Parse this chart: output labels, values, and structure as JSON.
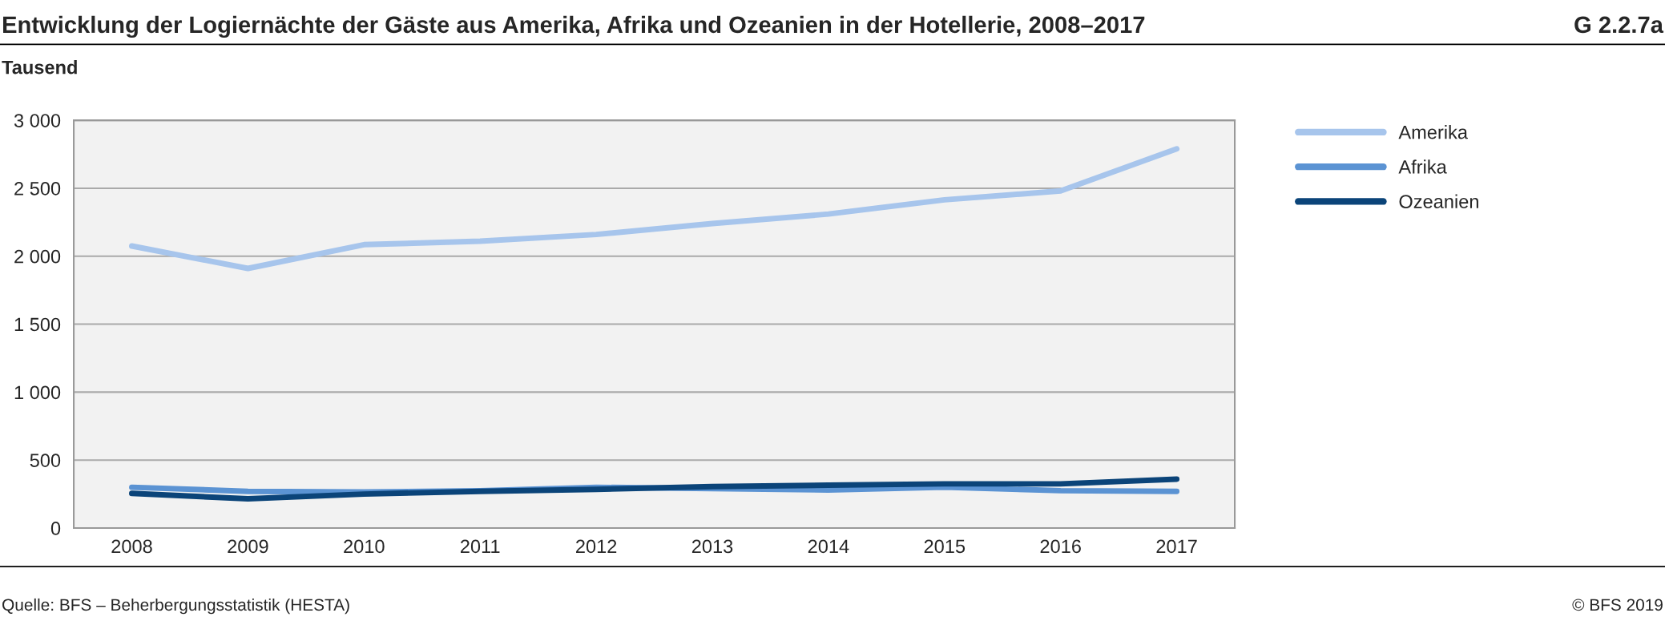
{
  "chart_data": {
    "type": "line",
    "title": "Entwicklung der Logiernächte der Gäste aus Amerika, Afrika und Ozeanien in der Hotellerie, 2008–2017",
    "ylabel": "Tausend",
    "categories": [
      "2008",
      "2009",
      "2010",
      "2011",
      "2012",
      "2013",
      "2014",
      "2015",
      "2016",
      "2017"
    ],
    "series": [
      {
        "name": "Amerika",
        "color": "#a7c5ec",
        "values": [
          2075,
          1910,
          2085,
          2110,
          2160,
          2240,
          2310,
          2415,
          2480,
          2790
        ]
      },
      {
        "name": "Afrika",
        "color": "#5b93d3",
        "values": [
          300,
          270,
          265,
          275,
          300,
          290,
          280,
          300,
          275,
          270
        ]
      },
      {
        "name": "Ozeanien",
        "color": "#0b4479",
        "values": [
          255,
          215,
          250,
          270,
          285,
          305,
          315,
          325,
          325,
          360
        ]
      }
    ],
    "ylim": [
      0,
      3000
    ],
    "yticks": [
      0,
      {
        "value": 500,
        "label": "500"
      },
      {
        "value": 1000,
        "label": "1 000"
      },
      {
        "value": 1500,
        "label": "1 500"
      },
      {
        "value": 2000,
        "label": "2 000"
      },
      {
        "value": 2500,
        "label": "2 500"
      },
      {
        "value": 3000,
        "label": "3 000"
      }
    ],
    "grid": "y",
    "legend": "top right",
    "marker": "none",
    "line_style": "solid",
    "annotations": [
      "G 2.2.7a",
      "Quelle: BFS – Beherbergungsstatistik (HESTA)",
      "© BFS 2019"
    ]
  }
}
